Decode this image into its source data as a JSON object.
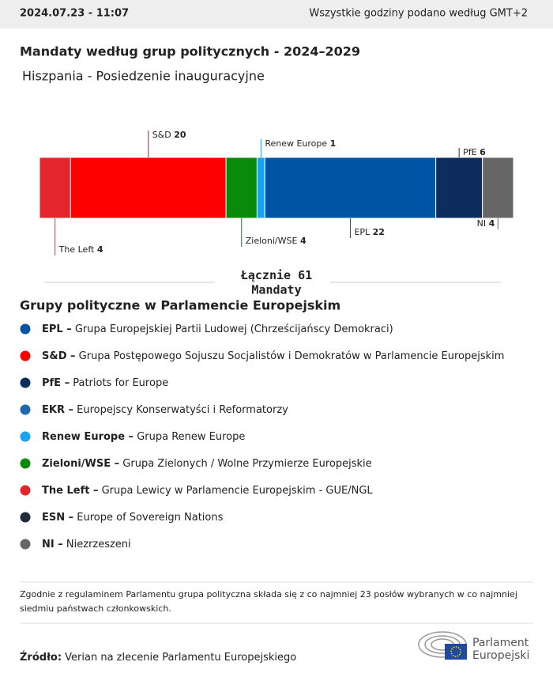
{
  "header": {
    "timestamp": "2024.07.23 - 11:07",
    "timezone_note": "Wszystkie godziny podano według GMT+2"
  },
  "chart_data": {
    "type": "stacked-bar",
    "title": "Mandaty według grup politycznych - 2024–2029",
    "subtitle": "Hiszpania - Posiedzenie inauguracyjne",
    "series": [
      {
        "name": "The Left",
        "color": "#e3262e",
        "values": [
          4
        ]
      },
      {
        "name": "S&D",
        "color": "#ff0000",
        "values": [
          20
        ]
      },
      {
        "name": "Zieloni/WSE",
        "color": "#0a8a0a",
        "values": [
          4
        ]
      },
      {
        "name": "Renew Europe",
        "color": "#1aa1ef",
        "values": [
          1
        ]
      },
      {
        "name": "EPL",
        "color": "#0054a5",
        "values": [
          22
        ]
      },
      {
        "name": "PfE",
        "color": "#0d2e5c",
        "values": [
          6
        ]
      },
      {
        "name": "NI",
        "color": "#666666",
        "values": [
          4
        ]
      }
    ],
    "total_label": "Łącznie",
    "total": 61,
    "total_unit": "Mandaty"
  },
  "legend": {
    "title": "Grupy polityczne w Parlamencie Europejskim",
    "items": [
      {
        "abbr": "EPL –",
        "name": "Grupa Europejskiej Partii Ludowej (Chrześcijańscy Demokraci)",
        "color": "#0054a5"
      },
      {
        "abbr": "S&D –",
        "name": "Grupa Postępowego Sojuszu Socjalistów i Demokratów w Parlamencie Europejskim",
        "color": "#ff0000"
      },
      {
        "abbr": "PfE –",
        "name": "Patriots for Europe",
        "color": "#0d2e5c"
      },
      {
        "abbr": "EKR –",
        "name": "Europejscy Konserwatyści i Reformatorzy",
        "color": "#1d6aad"
      },
      {
        "abbr": "Renew Europe –",
        "name": "Grupa Renew Europe",
        "color": "#1aa1ef"
      },
      {
        "abbr": "Zieloni/WSE –",
        "name": "Grupa Zielonych / Wolne Przymierze Europejskie",
        "color": "#0a8a0a"
      },
      {
        "abbr": "The Left –",
        "name": "Grupa Lewicy w Parlamencie Europejskim - GUE/NGL",
        "color": "#e3262e"
      },
      {
        "abbr": "ESN –",
        "name": "Europe of Sovereign Nations",
        "color": "#1f2a3a"
      },
      {
        "abbr": "NI –",
        "name": "Niezrzeszeni",
        "color": "#666666"
      }
    ]
  },
  "footnote": [
    "Zgodnie z regulaminem Parlamentu grupa polityczna składa się z co najmniej 23 posłów wybranych w co najmniej",
    "siedmiu państwach członkowskich."
  ],
  "source": {
    "label": "Źródło:",
    "text": "Verian na zlecenie Parlamentu Europejskiego"
  },
  "logo": [
    "Parlament",
    "Europejski"
  ]
}
